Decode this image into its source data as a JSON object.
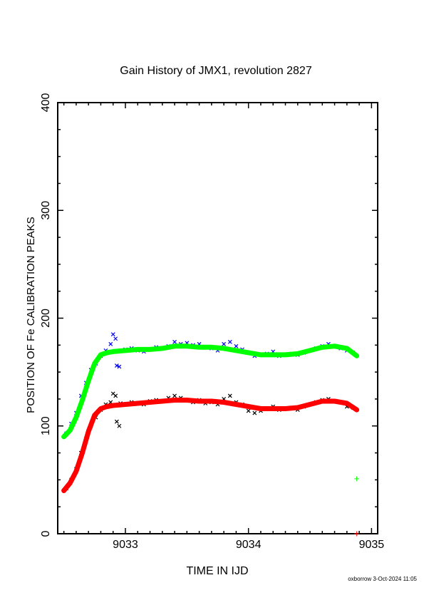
{
  "chart_data": {
    "type": "scatter",
    "title": "Gain History of JMX1, revolution 2827",
    "xlabel": "TIME IN IJD",
    "ylabel": "POSITION OF Fe CALIBRATION PEAKS",
    "xlim": [
      9032.45,
      9035.05
    ],
    "ylim": [
      0,
      400
    ],
    "x_ticks": [
      "9033",
      "9034",
      "9035"
    ],
    "y_ticks": [
      "0",
      "100",
      "200",
      "300",
      "400"
    ],
    "grid": false,
    "series": [
      {
        "color": "#0000ff",
        "marker": "x",
        "x": [
          9032.52,
          9032.56,
          9032.6,
          9032.64,
          9032.68,
          9032.72,
          9032.76,
          9032.8,
          9032.84,
          9032.88,
          9032.92,
          9032.96,
          9033.0,
          9033.05,
          9033.1,
          9033.15,
          9033.2,
          9033.25,
          9033.3,
          9033.35,
          9033.4,
          9033.45,
          9033.5,
          9033.55,
          9033.6,
          9033.65,
          9033.7,
          9033.75,
          9033.8,
          9033.85,
          9033.9,
          9033.95,
          9034.0,
          9034.05,
          9034.1,
          9034.15,
          9034.2,
          9034.25,
          9034.3,
          9034.35,
          9034.4,
          9034.45,
          9034.5,
          9034.55,
          9034.6,
          9034.65,
          9034.7,
          9034.75,
          9034.8,
          9034.85,
          9032.93,
          9032.95,
          9032.9
        ],
        "y": [
          93,
          102,
          112,
          128,
          140,
          152,
          158,
          165,
          170,
          176,
          181,
          170,
          171,
          172,
          170,
          169,
          171,
          173,
          172,
          174,
          178,
          176,
          177,
          175,
          176,
          173,
          172,
          170,
          176,
          178,
          174,
          171,
          168,
          165,
          166,
          167,
          169,
          165,
          166,
          167,
          166,
          168,
          170,
          172,
          174,
          176,
          174,
          172,
          170,
          168,
          156,
          155,
          185
        ]
      },
      {
        "color": "#000000",
        "marker": "x",
        "x": [
          9032.52,
          9032.56,
          9032.6,
          9032.64,
          9032.68,
          9032.72,
          9032.76,
          9032.8,
          9032.84,
          9032.88,
          9032.92,
          9032.96,
          9033.0,
          9033.05,
          9033.1,
          9033.15,
          9033.2,
          9033.25,
          9033.3,
          9033.35,
          9033.4,
          9033.45,
          9033.5,
          9033.55,
          9033.6,
          9033.65,
          9033.7,
          9033.75,
          9033.8,
          9033.85,
          9033.9,
          9033.95,
          9034.0,
          9034.05,
          9034.1,
          9034.15,
          9034.2,
          9034.25,
          9034.3,
          9034.35,
          9034.4,
          9034.45,
          9034.5,
          9034.55,
          9034.6,
          9034.65,
          9034.7,
          9034.75,
          9034.8,
          9034.85,
          9032.93,
          9032.95,
          9032.9
        ],
        "y": [
          42,
          50,
          60,
          75,
          88,
          100,
          108,
          115,
          120,
          122,
          128,
          121,
          120,
          122,
          121,
          120,
          123,
          124,
          123,
          126,
          128,
          126,
          124,
          122,
          124,
          121,
          122,
          120,
          125,
          128,
          122,
          120,
          114,
          112,
          114,
          116,
          118,
          115,
          116,
          117,
          115,
          118,
          120,
          122,
          124,
          125,
          123,
          122,
          118,
          117,
          104,
          100,
          130
        ]
      },
      {
        "color": "#00ff00",
        "marker": "line",
        "x": [
          9032.5,
          9032.55,
          9032.6,
          9032.65,
          9032.7,
          9032.75,
          9032.8,
          9032.85,
          9032.9,
          9033.0,
          9033.1,
          9033.2,
          9033.3,
          9033.4,
          9033.5,
          9033.6,
          9033.7,
          9033.8,
          9033.9,
          9034.0,
          9034.1,
          9034.2,
          9034.3,
          9034.4,
          9034.5,
          9034.6,
          9034.7,
          9034.8,
          9034.88
        ],
        "y": [
          90,
          96,
          108,
          124,
          142,
          158,
          166,
          168,
          169,
          170,
          171,
          171,
          172,
          174,
          174,
          173,
          173,
          172,
          170,
          168,
          166,
          166,
          166,
          167,
          170,
          173,
          174,
          172,
          165
        ]
      },
      {
        "color": "#ff0000",
        "marker": "line",
        "x": [
          9032.5,
          9032.55,
          9032.6,
          9032.65,
          9032.7,
          9032.75,
          9032.8,
          9032.85,
          9032.9,
          9033.0,
          9033.1,
          9033.2,
          9033.3,
          9033.4,
          9033.5,
          9033.6,
          9033.7,
          9033.8,
          9033.9,
          9034.0,
          9034.1,
          9034.2,
          9034.3,
          9034.4,
          9034.5,
          9034.6,
          9034.7,
          9034.8,
          9034.88
        ],
        "y": [
          40,
          47,
          58,
          75,
          95,
          110,
          116,
          118,
          119,
          120,
          121,
          122,
          123,
          124,
          124,
          123,
          123,
          122,
          120,
          118,
          116,
          116,
          116,
          117,
          120,
          123,
          123,
          121,
          115
        ]
      },
      {
        "color": "#00ff00",
        "marker": "+",
        "x": [
          9034.88
        ],
        "y": [
          51
        ]
      },
      {
        "color": "#ff0000",
        "marker": "+",
        "x": [
          9034.88
        ],
        "y": [
          0
        ]
      }
    ]
  },
  "footer": "oxborrow  3-Oct-2024 11:05"
}
